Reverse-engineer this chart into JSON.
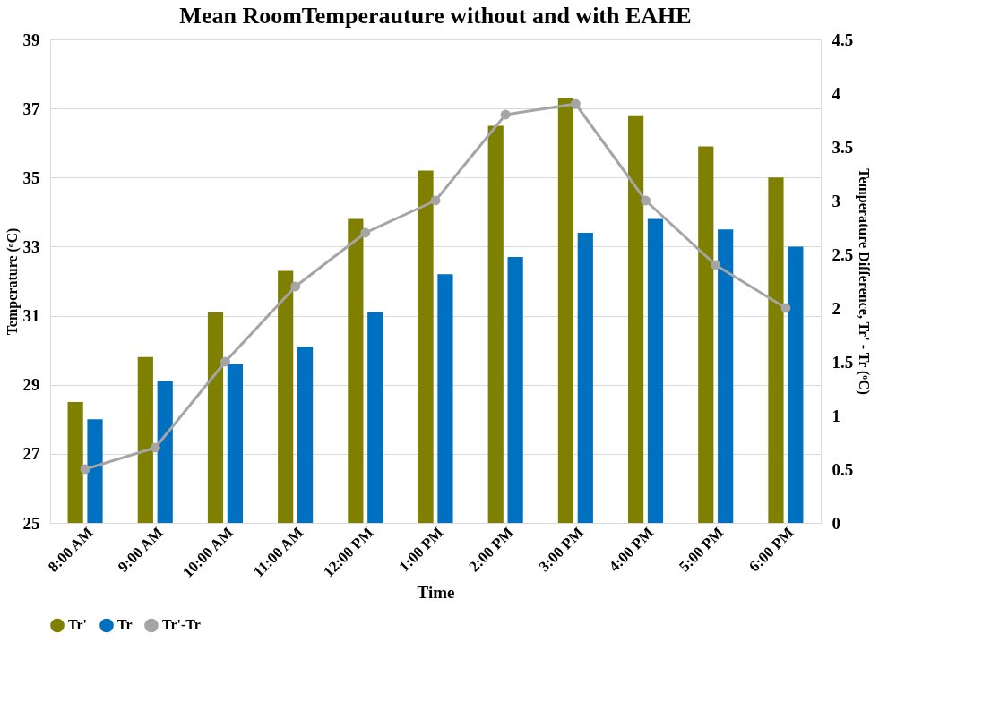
{
  "chart_data": {
    "type": "bar",
    "title": "Mean RoomTemperauture without and with EAHE",
    "xlabel": "Time",
    "ylabel": "Temperature (ᵒC)",
    "y2label": "Temperature Difference, Tr' - Tr (ᵒC)",
    "categories": [
      "8:00 AM",
      "9:00 AM",
      "10:00 AM",
      "11:00 AM",
      "12:00 PM",
      "1:00 PM",
      "2:00 PM",
      "3:00 PM",
      "4:00 PM",
      "5:00 PM",
      "6:00 PM"
    ],
    "series": [
      {
        "name": "Tr'",
        "color": "#7f7f00",
        "values": [
          28.5,
          29.8,
          31.1,
          32.3,
          33.8,
          35.2,
          36.5,
          37.3,
          36.8,
          35.9,
          35.0
        ]
      },
      {
        "name": "Tr",
        "color": "#0070c0",
        "values": [
          28.0,
          29.1,
          29.6,
          30.1,
          31.1,
          32.2,
          32.7,
          33.4,
          33.8,
          33.5,
          33.0
        ]
      },
      {
        "name": "Tr'-Tr",
        "type": "line",
        "axis": "y2",
        "color": "#a5a5a5",
        "marker": "circle",
        "values": [
          0.5,
          0.7,
          1.5,
          2.2,
          2.7,
          3.0,
          3.8,
          3.9,
          3.0,
          2.4,
          2.0
        ]
      }
    ],
    "ylim": [
      25,
      39
    ],
    "yticks": [
      25,
      27,
      29,
      31,
      33,
      35,
      37,
      39
    ],
    "y2lim": [
      0,
      4.5
    ],
    "y2ticks": [
      0,
      0.5,
      1,
      1.5,
      2,
      2.5,
      3,
      3.5,
      4,
      4.5
    ],
    "grid": "y",
    "legend": "bottom"
  }
}
